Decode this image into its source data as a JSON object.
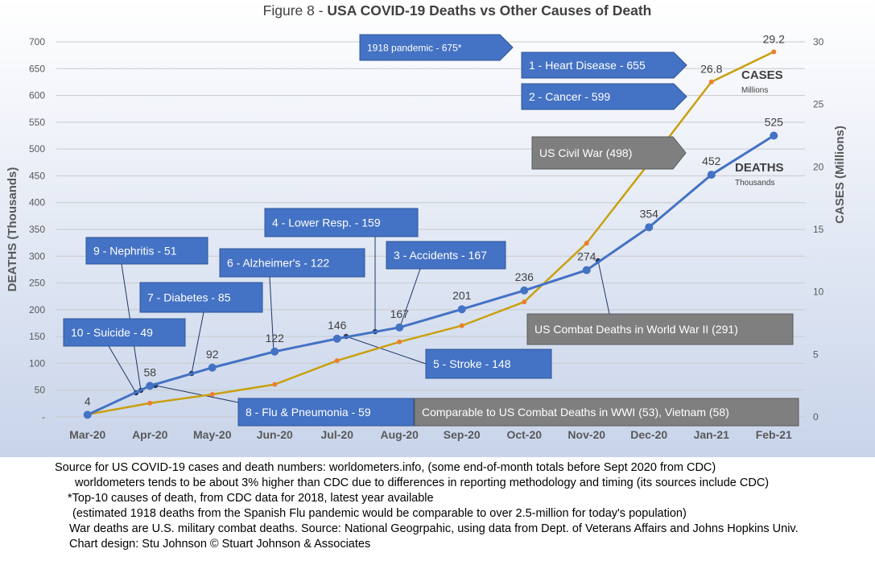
{
  "chart_data": {
    "type": "line",
    "title_prefix": "Figure 8 - ",
    "title_main": "USA COVID-19 Deaths vs Other Causes of Death",
    "ylabel": "DEATHS (Thousands)",
    "y2label": "CASES (Millions)",
    "ylim": [
      0,
      700
    ],
    "y2lim": [
      0,
      30
    ],
    "yticks": [
      "-",
      "50",
      "100",
      "150",
      "200",
      "250",
      "300",
      "350",
      "400",
      "450",
      "500",
      "550",
      "600",
      "650",
      "700"
    ],
    "y2ticks": [
      "0",
      "5",
      "10",
      "15",
      "20",
      "25",
      "30"
    ],
    "categories": [
      "Mar-20",
      "Apr-20",
      "May-20",
      "Jun-20",
      "Jul-20",
      "Aug-20",
      "Sep-20",
      "Oct-20",
      "Nov-20",
      "Dec-20",
      "Jan-21",
      "Feb-21"
    ],
    "grid": true,
    "series": [
      {
        "name": "DEATHS",
        "sublabel": "Thousands",
        "axis": "left",
        "color": "#4472C4",
        "values": [
          4,
          58,
          92,
          122,
          146,
          167,
          201,
          236,
          274,
          354,
          452,
          525
        ],
        "labels": [
          "4",
          "58",
          "92",
          "122",
          "146",
          "167",
          "201",
          "236",
          "274",
          "354",
          "452",
          "525"
        ]
      },
      {
        "name": "CASES",
        "sublabel": "Millions",
        "axis": "right",
        "color": "#C9A00F",
        "values": [
          0.2,
          1.1,
          1.8,
          2.6,
          4.5,
          6.0,
          7.3,
          9.2,
          13.9,
          20.3,
          26.8,
          29.2
        ],
        "labels": [
          "",
          "",
          "",
          "",
          "",
          "",
          "",
          "",
          "",
          "",
          "26.8",
          "29.2"
        ]
      }
    ],
    "annotations": [
      {
        "text": "1918 pandemic - 675*",
        "value": 675,
        "style": "arrow-blue-small"
      },
      {
        "text": "1 - Heart Disease - 655",
        "value": 655,
        "style": "arrow-blue"
      },
      {
        "text": "2 - Cancer - 599",
        "value": 599,
        "style": "arrow-blue"
      },
      {
        "text": "US Civil War (498)",
        "value": 498,
        "style": "arrow-gray"
      },
      {
        "text": "4 - Lower Resp.  - 159",
        "value": 159,
        "style": "box-blue"
      },
      {
        "text": "3 - Accidents - 167",
        "value": 167,
        "style": "box-blue"
      },
      {
        "text": "9 - Nephritis - 51",
        "value": 51,
        "style": "box-blue"
      },
      {
        "text": "6 - Alzheimer's - 122",
        "value": 122,
        "style": "box-blue"
      },
      {
        "text": "7 - Diabetes - 85",
        "value": 85,
        "style": "box-blue"
      },
      {
        "text": "10 - Suicide - 49",
        "value": 49,
        "style": "box-blue"
      },
      {
        "text": "5 -  Stroke - 148",
        "value": 148,
        "style": "box-blue"
      },
      {
        "text": "8 - Flu & Pneumonia - 59",
        "value": 59,
        "style": "box-blue"
      },
      {
        "text": "US Combat Deaths in World War II (291)",
        "value": 291,
        "style": "box-gray"
      },
      {
        "text": "Comparable to US Combat Deaths in WWI (53), Vietnam (58)",
        "value": 58,
        "style": "box-gray"
      }
    ],
    "colors": {
      "plot_bg_top": "#ffffff",
      "plot_bg_bottom": "#c8d4ea",
      "box_blue": "#4472C4",
      "box_gray": "#7F7F7F",
      "axis_text": "#595959"
    }
  },
  "footer": {
    "line1": "Source for US COVID-19 cases and death numbers: worldometers.info, (some end-of-month totals before Sept 2020 from CDC)",
    "line2": "worldometers tends to be about 3% higher than CDC due to differences in reporting methodology and timing (its sources include CDC)",
    "line3": "*Top-10 causes of death, from CDC data for 2018, latest year available",
    "line4": "(estimated 1918 deaths from the Spanish Flu pandemic would be comparable to over 2.5-million for today's population)",
    "line5": "War deaths are U.S. military combat deaths.  Source: National Geogrpahic, using data from Dept. of Veterans Affairs and Johns Hopkins Univ.",
    "line6": "Chart design: Stu Johnson © Stuart Johnson & Associates"
  }
}
